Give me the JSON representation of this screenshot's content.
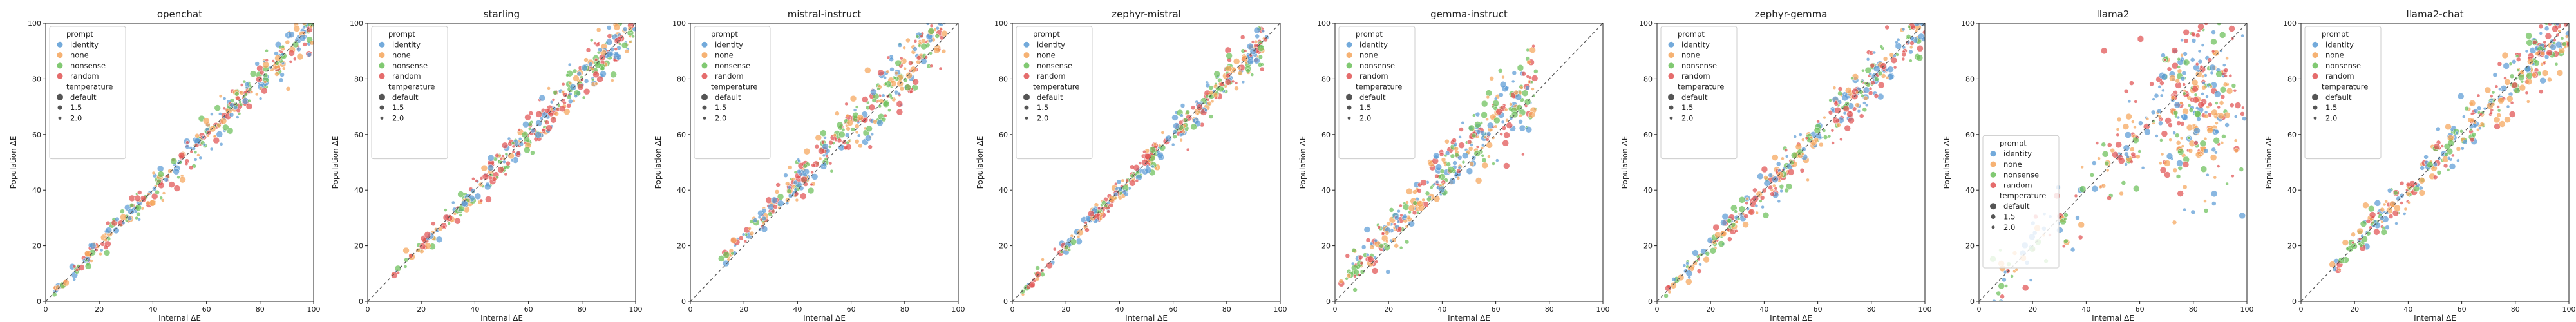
{
  "chart_data": {
    "type": "scatter",
    "xlabel": "Internal ΔE",
    "ylabel": "Population ΔE",
    "xlim": [
      0,
      100
    ],
    "ylim": [
      0,
      100
    ],
    "xticks": [
      0,
      20,
      40,
      60,
      80,
      100
    ],
    "yticks": [
      0,
      20,
      40,
      60,
      80,
      100
    ],
    "reference_line": "y = x (dashed)",
    "legend": {
      "prompt_title": "prompt",
      "prompt_items": [
        {
          "label": "identity",
          "color": "#5b9bd5"
        },
        {
          "label": "none",
          "color": "#f5a55a"
        },
        {
          "label": "nonsense",
          "color": "#6bbf59"
        },
        {
          "label": "random",
          "color": "#e05252"
        }
      ],
      "temperature_title": "temperature",
      "temperature_items": [
        {
          "label": "default",
          "size": 5
        },
        {
          "label": "1.5",
          "size": 3.5
        },
        {
          "label": "2.0",
          "size": 2.5
        }
      ]
    },
    "panels": [
      {
        "title": "openchat",
        "spread": 3.0,
        "xmin": 2,
        "xmax": 100,
        "legend": "top-left"
      },
      {
        "title": "starling",
        "spread": 3.0,
        "xmin": 8,
        "xmax": 100,
        "legend": "top-left"
      },
      {
        "title": "mistral-instruct",
        "spread": 4.0,
        "xmin": 10,
        "xmax": 95,
        "legend": "top-left"
      },
      {
        "title": "zephyr-mistral",
        "spread": 2.5,
        "xmin": 2,
        "xmax": 95,
        "legend": "top-left"
      },
      {
        "title": "gemma-instruct",
        "spread": 6.0,
        "xmin": 2,
        "xmax": 75,
        "legend": "top-left"
      },
      {
        "title": "zephyr-gemma",
        "spread": 3.5,
        "xmin": 2,
        "xmax": 100,
        "legend": "top-left"
      },
      {
        "title": "llama2",
        "spread": 22.0,
        "xmin": 5,
        "xmax": 100,
        "legend": "lower-left"
      },
      {
        "title": "llama2-chat",
        "spread": 4.0,
        "xmin": 10,
        "xmax": 100,
        "legend": "top-left"
      }
    ]
  }
}
